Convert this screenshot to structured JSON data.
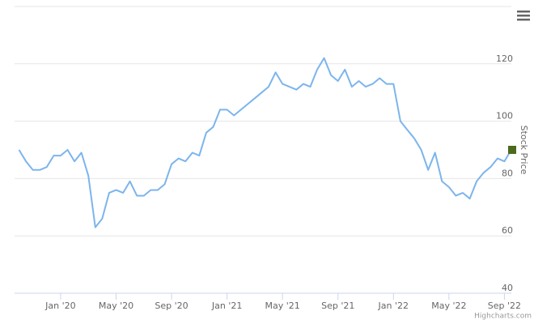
{
  "chart_data": {
    "type": "line",
    "y_axis_title": "Stock Price",
    "credits": "Highcharts.com",
    "categories": [
      null,
      null,
      null,
      null,
      null,
      null,
      "Jan '20",
      null,
      null,
      null,
      null,
      null,
      null,
      null,
      "May '20",
      null,
      null,
      null,
      null,
      null,
      null,
      null,
      "Sep '20",
      null,
      null,
      null,
      null,
      null,
      null,
      null,
      "Jan '21",
      null,
      null,
      null,
      null,
      null,
      null,
      null,
      "May '21",
      null,
      null,
      null,
      null,
      null,
      null,
      null,
      "Sep '21",
      null,
      null,
      null,
      null,
      null,
      null,
      null,
      "Jan '22",
      null,
      null,
      null,
      null,
      null,
      null,
      null,
      "May '22",
      null,
      null,
      null,
      null,
      null,
      null,
      null,
      "Sep '22",
      null
    ],
    "series": [
      {
        "name": "Stock Price",
        "color": "#7cb5ec",
        "values": [
          90,
          86,
          83,
          83,
          84,
          88,
          88,
          90,
          86,
          89,
          81,
          63,
          66,
          75,
          76,
          75,
          79,
          74,
          74,
          76,
          76,
          78,
          85,
          87,
          86,
          89,
          88,
          96,
          98,
          104,
          104,
          102,
          104,
          106,
          108,
          110,
          112,
          117,
          113,
          112,
          111,
          113,
          112,
          118,
          122,
          116,
          114,
          118,
          112,
          114,
          112,
          113,
          115,
          113,
          113,
          100,
          97,
          94,
          90,
          83,
          89,
          79,
          77,
          74,
          75,
          73,
          79,
          82,
          84,
          87,
          86,
          90
        ]
      }
    ],
    "last_price_color": "#4b6a1d",
    "ylim": [
      40,
      140
    ],
    "yticks": [
      40,
      60,
      80,
      100,
      120
    ],
    "grid": true
  }
}
